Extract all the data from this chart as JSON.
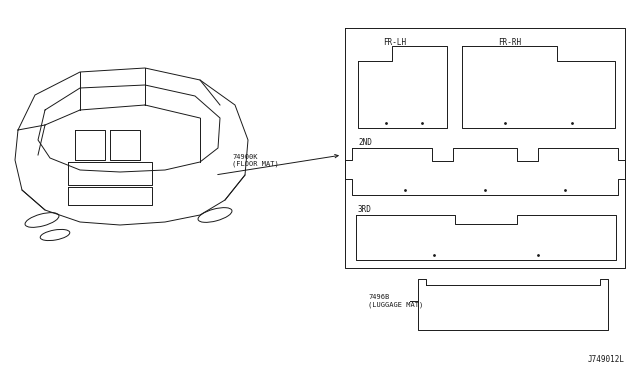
{
  "bg_color": "#ffffff",
  "line_color": "#1a1a1a",
  "title_code": "J749012L",
  "part1_code": "74900K",
  "part1_label": "(FLOOR MAT)",
  "part2_code": "7496B",
  "part2_label": "(LUGGAGE MAT)",
  "label_frlh": "FR-LH",
  "label_frrh": "FR-RH",
  "label_2nd": "2ND",
  "label_3rd": "3RD",
  "font_size_labels": 5.5,
  "font_size_codes": 5.0,
  "font_size_title": 5.5
}
